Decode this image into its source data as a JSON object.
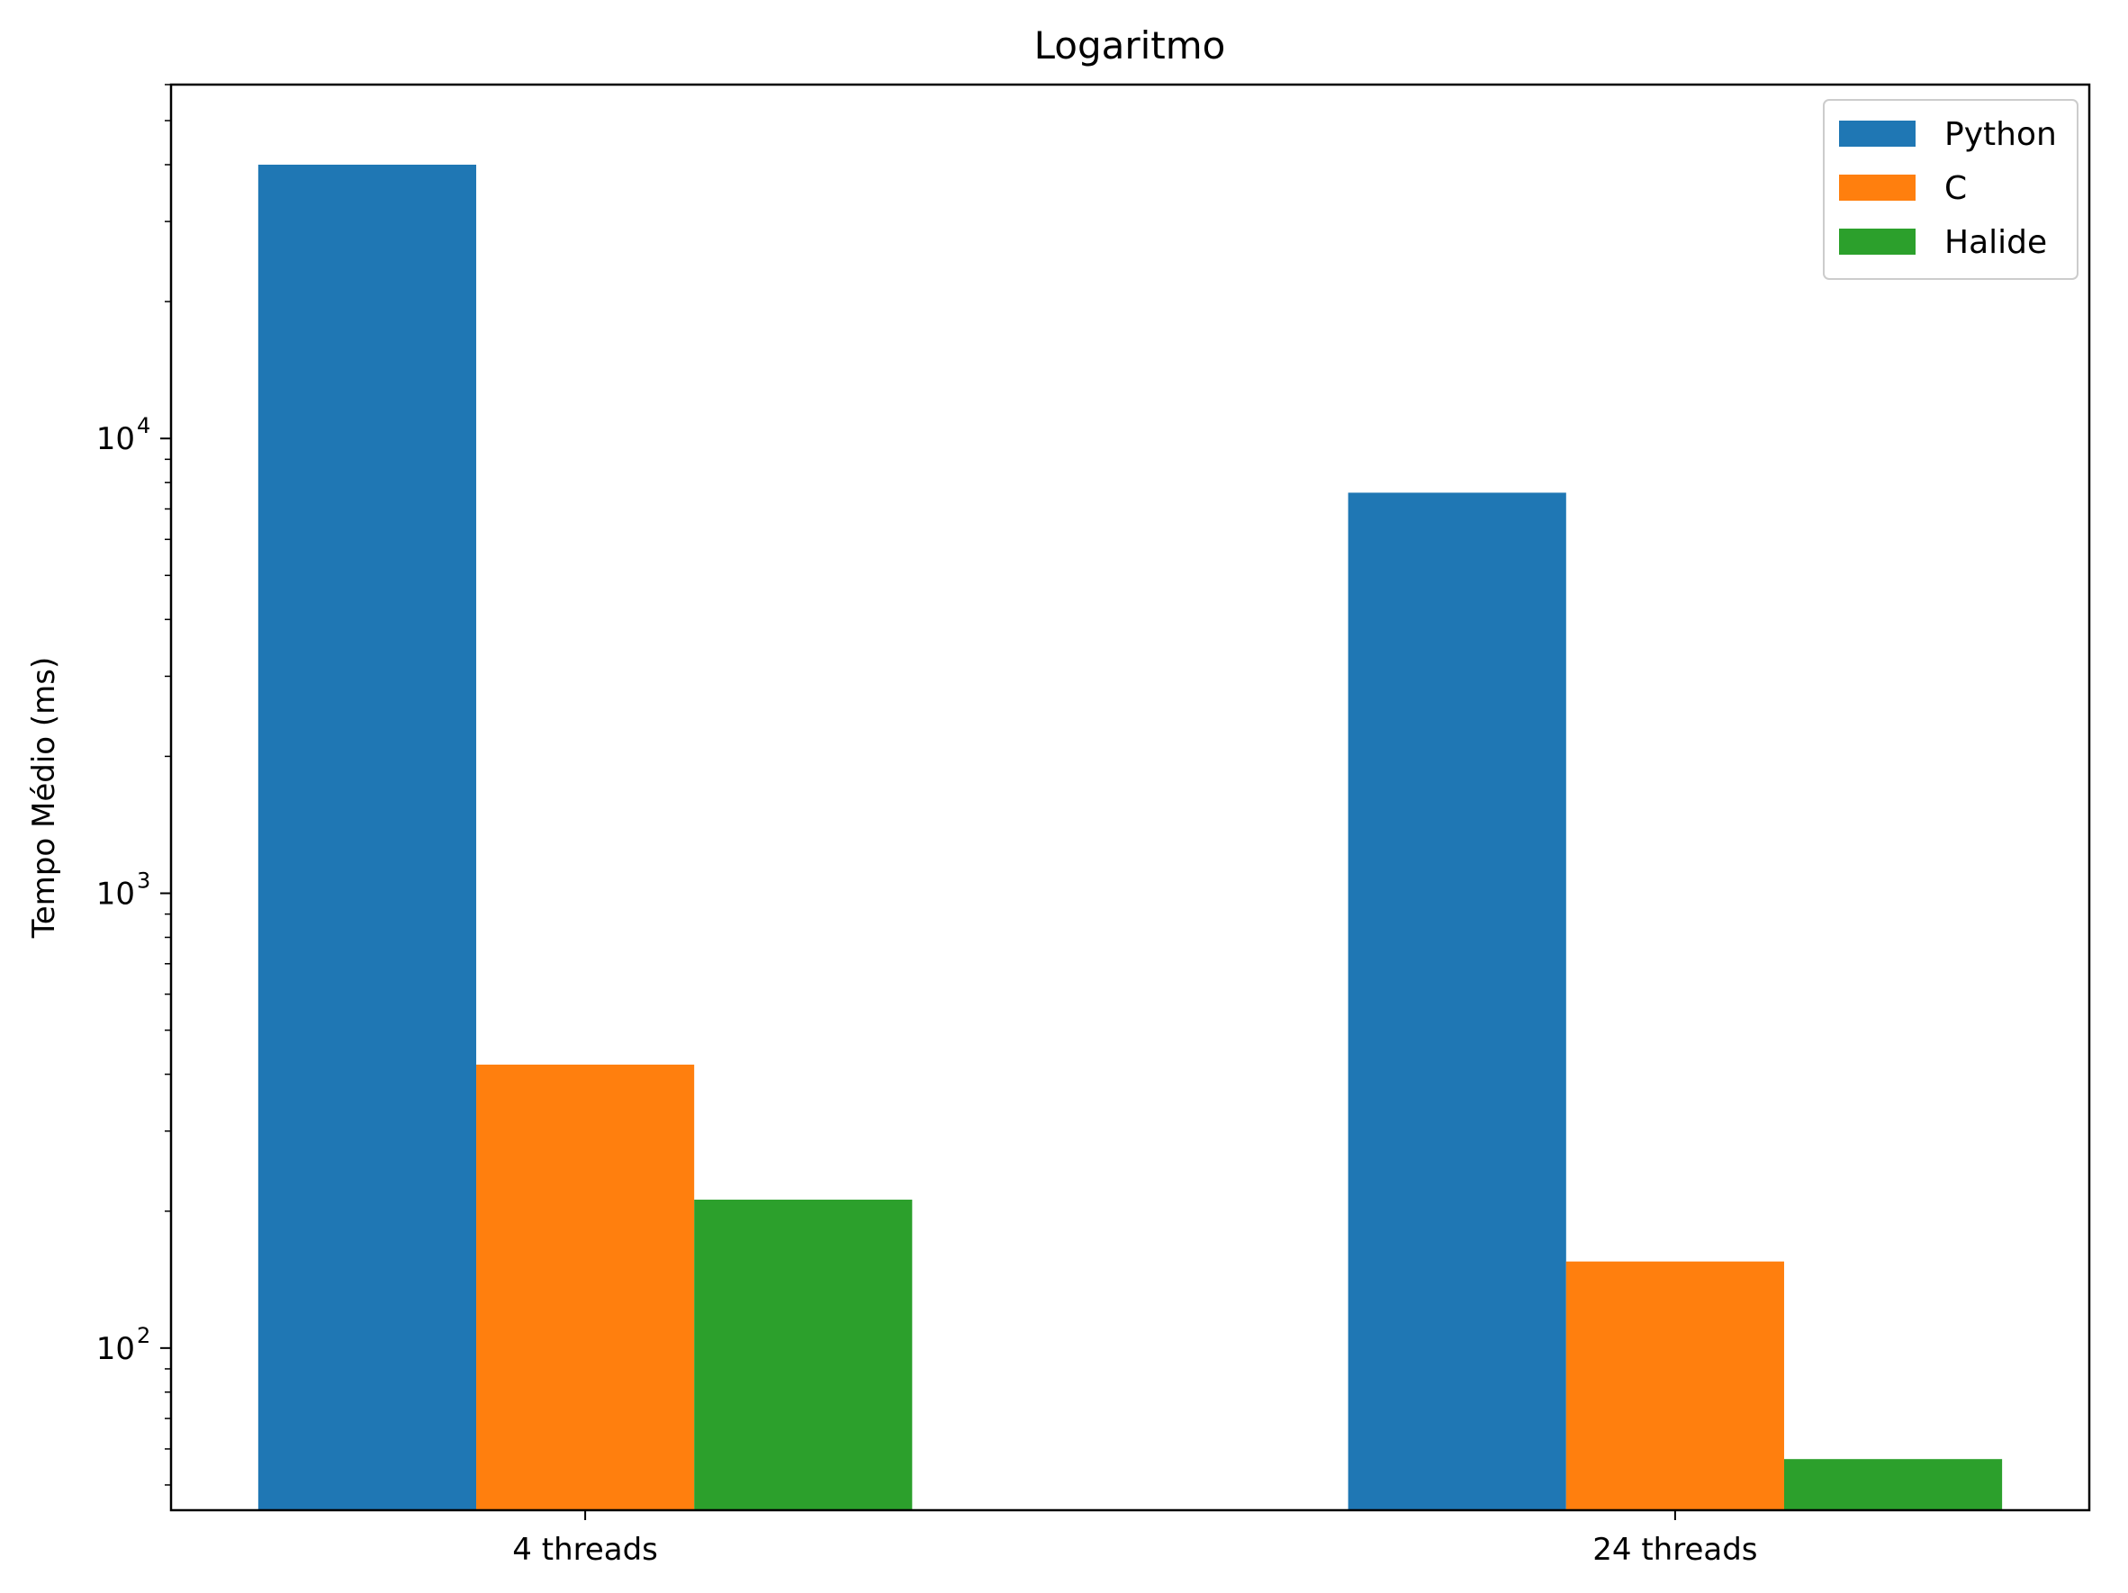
{
  "chart_data": {
    "type": "bar",
    "title": "Logaritmo",
    "xlabel": "",
    "ylabel": "Tempo Médio (ms)",
    "yscale": "log",
    "ylim": [
      44,
      60000
    ],
    "categories": [
      "4 threads",
      "24 threads"
    ],
    "series": [
      {
        "name": "Python",
        "color": "#1f77b4",
        "values": [
          40000,
          7600
        ]
      },
      {
        "name": "C",
        "color": "#ff7f0e",
        "values": [
          420,
          155
        ]
      },
      {
        "name": "Halide",
        "color": "#2ca02c",
        "values": [
          212,
          57
        ]
      }
    ],
    "yticks": [
      {
        "value": 100,
        "base": "10",
        "exp": "2"
      },
      {
        "value": 1000,
        "base": "10",
        "exp": "3"
      },
      {
        "value": 10000,
        "base": "10",
        "exp": "4"
      }
    ],
    "grid": false,
    "legend_position": "top-right"
  }
}
